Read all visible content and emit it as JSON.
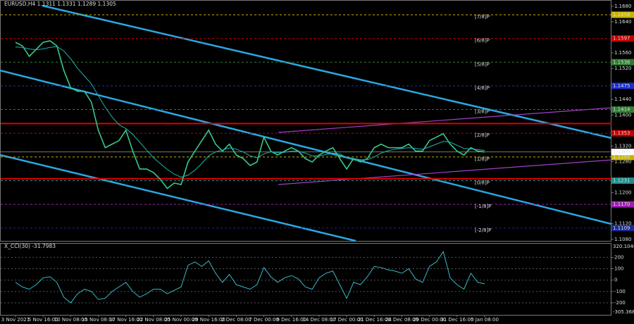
{
  "chart_data": [
    {
      "type": "line",
      "title": "EURUSD,H4  1.1311 1.1331 1.1289 1.1305",
      "categories": [
        "3 Nov 2021",
        null,
        null,
        null,
        "5 Nov 16:00",
        null,
        null,
        null,
        "10 Nov 08:00",
        null,
        null,
        null,
        "15 Nov 08:00",
        null,
        null,
        null,
        "17 Nov 16:00",
        null,
        null,
        null,
        "22 Nov 08:00",
        null,
        null,
        null,
        "25 Nov 00:00",
        null,
        null,
        null,
        "29 Nov 16:00",
        null,
        null,
        null,
        "2 Dec 08:00",
        null,
        null,
        null,
        "7 Dec 00:00",
        null,
        null,
        null,
        "9 Dec 16:00",
        null,
        null,
        null,
        "14 Dec 08:00",
        null,
        null,
        null,
        "17 Dec 00:00",
        null,
        null,
        null,
        "21 Dec 16:00",
        null,
        null,
        null,
        "24 Dec 08:00",
        null,
        null,
        null,
        "29 Dec 00:00",
        null,
        null,
        null,
        "31 Dec 16:00",
        null,
        null,
        null,
        "5 Jan 08:00"
      ],
      "series": [
        {
          "name": "EURUSD",
          "color": "#37c88a",
          "values": [
            1.1587,
            1.1578,
            1.1551,
            1.1569,
            1.1587,
            1.1591,
            1.1578,
            1.1515,
            1.147,
            1.1461,
            1.1461,
            1.1433,
            1.1361,
            1.1316,
            1.1325,
            1.1334,
            1.1361,
            1.1307,
            1.1261,
            1.1261,
            1.1252,
            1.1234,
            1.1211,
            1.1225,
            1.1221,
            1.1279,
            1.1307,
            1.1334,
            1.1361,
            1.1325,
            1.1307,
            1.1325,
            1.1297,
            1.1288,
            1.127,
            1.1279,
            1.1343,
            1.1307,
            1.1297,
            1.1307,
            1.1316,
            1.1307,
            1.1288,
            1.1279,
            1.1297,
            1.1307,
            1.1316,
            1.1288,
            1.1261,
            1.1288,
            1.1279,
            1.1288,
            1.1316,
            1.1325,
            1.1316,
            1.1316,
            1.1316,
            1.1325,
            1.1307,
            1.1307,
            1.1334,
            1.1343,
            1.1352,
            1.1325,
            1.1307,
            1.1297,
            1.1316,
            1.1307,
            1.1305
          ]
        },
        {
          "name": "MA",
          "color": "#20b2aa",
          "values": [
            1.1575,
            1.1574,
            1.157,
            1.1568,
            1.157,
            1.1574,
            1.1576,
            1.1565,
            1.1545,
            1.152,
            1.15,
            1.148,
            1.145,
            1.142,
            1.1395,
            1.1375,
            1.1365,
            1.135,
            1.133,
            1.131,
            1.129,
            1.1275,
            1.126,
            1.1248,
            1.124,
            1.1245,
            1.1258,
            1.1275,
            1.1295,
            1.1305,
            1.131,
            1.1315,
            1.1312,
            1.1305,
            1.1295,
            1.129,
            1.13,
            1.1305,
            1.1303,
            1.1304,
            1.1307,
            1.1307,
            1.1302,
            1.1295,
            1.1295,
            1.1298,
            1.1302,
            1.13,
            1.129,
            1.1288,
            1.1285,
            1.1285,
            1.1292,
            1.1302,
            1.1308,
            1.1312,
            1.1314,
            1.1316,
            1.1314,
            1.1312,
            1.1318,
            1.1325,
            1.1332,
            1.133,
            1.1322,
            1.1314,
            1.1313,
            1.1311,
            1.1309
          ]
        }
      ],
      "ylim": [
        1.1076,
        1.1696
      ],
      "yticks": [
        {
          "value": 1.108,
          "label": "1.1080"
        },
        {
          "value": 1.112,
          "label": "1.1120"
        },
        {
          "value": 1.12,
          "label": "1.1200"
        },
        {
          "value": 1.128,
          "label": "1.1280"
        },
        {
          "value": 1.132,
          "label": "1.1320"
        },
        {
          "value": 1.14,
          "label": "1.1400"
        },
        {
          "value": 1.144,
          "label": "1.1440"
        },
        {
          "value": 1.152,
          "label": "1.1520"
        },
        {
          "value": 1.156,
          "label": "1.1560"
        },
        {
          "value": 1.164,
          "label": "1.1640"
        },
        {
          "value": 1.168,
          "label": "1.1680"
        }
      ],
      "levels": [
        {
          "name": "[7/8]P",
          "value": 1.1658,
          "color": "#c8b400"
        },
        {
          "name": "[6/8]P",
          "value": 1.1597,
          "color": "#c00000"
        },
        {
          "name": "[5/8]P",
          "value": 1.1536,
          "color": "#2e7d32"
        },
        {
          "name": "[4/8]P",
          "value": 1.1475,
          "color": "#1a2fd0"
        },
        {
          "name": "[3/8]P",
          "value": 1.1414,
          "color": "#2e7d32"
        },
        {
          "name": "[2/8]P",
          "value": 1.1353,
          "color": "#c00000"
        },
        {
          "name": "[1/8]P",
          "value": 1.1292,
          "color": "#c8b400"
        },
        {
          "name": "[0/8]P",
          "value": 1.1231,
          "color": "#1f8a8a"
        },
        {
          "name": "[-1/8]P",
          "value": 1.117,
          "value_label": "1.1170",
          "color": "#9a1fb0"
        },
        {
          "name": "[-2/8]P",
          "value": 1.1109,
          "color": "#1a2a90"
        }
      ],
      "support_resistance": [
        1.1378,
        1.1236
      ],
      "support_resistance_color": "#e00000",
      "last": 1.1305
    },
    {
      "type": "line",
      "title": "X_CCI(30) -31.7983",
      "series": [
        {
          "name": "CCI",
          "color": "#3ab7c4",
          "values": [
            -20,
            -60,
            -80,
            -40,
            20,
            30,
            -20,
            -150,
            -200,
            -120,
            -80,
            -100,
            -170,
            -160,
            -100,
            -60,
            -20,
            -100,
            -150,
            -120,
            -80,
            -80,
            -120,
            -90,
            -60,
            130,
            160,
            120,
            170,
            60,
            -20,
            50,
            -40,
            -60,
            -80,
            -40,
            110,
            30,
            -20,
            20,
            40,
            10,
            -60,
            -80,
            20,
            60,
            80,
            -40,
            -160,
            -20,
            -40,
            30,
            120,
            110,
            90,
            80,
            60,
            100,
            10,
            -20,
            120,
            160,
            250,
            20,
            -40,
            -80,
            60,
            -20,
            -31.7983
          ]
        }
      ],
      "ylim": [
        -305.368,
        320.1046
      ],
      "yticks": [
        -200,
        -100,
        0,
        100,
        200
      ]
    }
  ]
}
